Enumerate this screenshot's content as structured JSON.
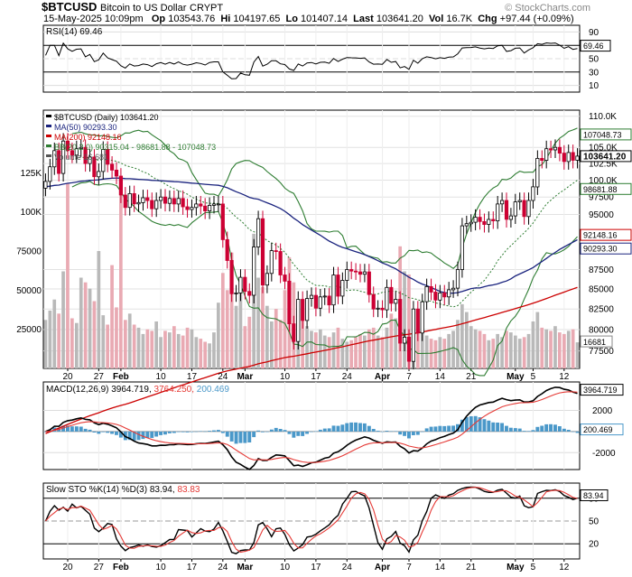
{
  "header": {
    "symbol": "$BTCUSD",
    "name": "Bitcoin to US Dollar",
    "exchange": "CRYPT",
    "date": "15-May-2025 10:09pm",
    "op_label": "Op",
    "op": "103543.76",
    "hi_label": "Hi",
    "hi": "104197.65",
    "lo_label": "Lo",
    "lo": "101407.14",
    "last_label": "Last",
    "last": "103641.20",
    "vol_label": "Vol",
    "vol": "16.7K",
    "chg_label": "Chg",
    "chg": "+97.44 (+0.09%)",
    "credit": "© StockCharts.com"
  },
  "colors": {
    "up_candle": "#000000",
    "down_candle": "#cc0033",
    "ma50": "#1a237e",
    "ma200": "#cc0000",
    "bb": "#2e7d32",
    "volume": "#e9aab3",
    "macd": "#000000",
    "signal": "#e53935",
    "histogram": "#4a98c9",
    "stoch_k": "#000000",
    "stoch_d": "#e53935",
    "rsi_line": "#000000",
    "rsi_fill": "#5d8f4a"
  },
  "rsi_panel": {
    "label": "RSI(14) 69.46",
    "ticks": [
      "90",
      "70",
      "50",
      "30",
      "10"
    ],
    "current": "69.46"
  },
  "price_panel": {
    "legend": [
      {
        "text": "$BTCUSD (Daily) 103641.20",
        "color": "#000000"
      },
      {
        "text": "MA(50) 90293.30",
        "color": "#1a237e"
      },
      {
        "text": "MA(200) 92148.16",
        "color": "#cc0000"
      },
      {
        "text": "BB(20,2.0) 90315.04 - 98681.88 - 107048.73",
        "color": "#2e7d32"
      },
      {
        "text": "Volume 16,681",
        "color": "#555555"
      }
    ],
    "ticks": [
      "110.0K",
      "105.0K",
      "102.5K",
      "100.0K",
      "97500",
      "95000",
      "87500",
      "85000",
      "82500",
      "80000",
      "77500"
    ],
    "markers": [
      "107048.73",
      "103641.20",
      "98681.88",
      "92148.16",
      "90293.30"
    ],
    "volume_ticks": [
      "125K",
      "100K",
      "75000",
      "50000",
      "25000"
    ],
    "volume_marker": "16681"
  },
  "macd_panel": {
    "label": "MACD(12,26,9)",
    "macd": "3964.719",
    "signal": "3764.250",
    "hist": "200.469",
    "ticks": [
      "2000",
      "0",
      "-2000"
    ],
    "markers": [
      "3964.719",
      "200.469"
    ]
  },
  "sto_panel": {
    "label": "Slow STO %K(14) %D(3)",
    "k": "83.94",
    "d": "83.83",
    "ticks": [
      "80",
      "50",
      "20"
    ],
    "marker": "83.94"
  },
  "x_axis": {
    "labels": [
      {
        "text": "20",
        "bold": false
      },
      {
        "text": "27",
        "bold": false
      },
      {
        "text": "Feb",
        "bold": true
      },
      {
        "text": "10",
        "bold": false
      },
      {
        "text": "17",
        "bold": false
      },
      {
        "text": "24",
        "bold": false
      },
      {
        "text": "Mar",
        "bold": true
      },
      {
        "text": "10",
        "bold": false
      },
      {
        "text": "17",
        "bold": false
      },
      {
        "text": "24",
        "bold": false
      },
      {
        "text": "Apr",
        "bold": true
      },
      {
        "text": "7",
        "bold": false
      },
      {
        "text": "14",
        "bold": false
      },
      {
        "text": "21",
        "bold": false
      },
      {
        "text": "May",
        "bold": true
      },
      {
        "text": "5",
        "bold": false
      },
      {
        "text": "12",
        "bold": false
      }
    ]
  },
  "chart_data": {
    "type": "line",
    "start_date": "2025-01-15",
    "dates_note": "one candle per calendar day",
    "title": "$BTCUSD (Daily) 103641.20",
    "y_scale": "log",
    "price_range": [
      75500,
      111000
    ],
    "closes": [
      99800,
      102000,
      104500,
      101000,
      106000,
      104500,
      103800,
      104800,
      105000,
      102500,
      103500,
      100500,
      101300,
      104700,
      102400,
      101500,
      100600,
      97800,
      96000,
      98000,
      96500,
      96700,
      97400,
      97000,
      95800,
      97000,
      97500,
      96600,
      97300,
      96500,
      97300,
      96100,
      95700,
      96000,
      96500,
      96200,
      95500,
      96300,
      96500,
      96500,
      91500,
      88700,
      84400,
      84500,
      86500,
      84700,
      84200,
      90500,
      94400,
      85500,
      87000,
      90000,
      89900,
      86800,
      86000,
      80700,
      78600,
      83700,
      81100,
      83800,
      84200,
      82600,
      84000,
      84100,
      83000,
      86800,
      84100,
      86100,
      87500,
      87300,
      87200,
      86900,
      87200,
      84300,
      82500,
      82600,
      82400,
      85200,
      83200,
      83700,
      78400,
      79100,
      76300,
      82500,
      79600,
      83400,
      85300,
      84600,
      83600,
      84500,
      84000,
      84900,
      85100,
      87500,
      93400,
      93700,
      93900,
      94600,
      94000,
      93600,
      94300,
      94100,
      96500,
      97000,
      94300,
      94800,
      96800,
      97000,
      94700,
      97000,
      99000,
      103300,
      103000,
      104800,
      104600,
      105000,
      104100,
      102800,
      104200,
      103000,
      103641
    ],
    "volumes": [
      31000,
      37000,
      44000,
      35000,
      62000,
      118000,
      32000,
      29000,
      58000,
      55000,
      51000,
      43000,
      75000,
      34000,
      28000,
      66000,
      39000,
      113000,
      31000,
      35000,
      28000,
      26000,
      22000,
      25000,
      24000,
      30000,
      20000,
      24000,
      23000,
      27000,
      22000,
      21000,
      26000,
      25000,
      20000,
      19000,
      17000,
      16000,
      23000,
      42000,
      61000,
      50000,
      74000,
      40000,
      49000,
      27000,
      33000,
      86000,
      58000,
      52000,
      40000,
      30000,
      38000,
      31000,
      50000,
      71000,
      55000,
      32000,
      44000,
      27000,
      24000,
      23000,
      25000,
      21000,
      20000,
      23000,
      26000,
      19000,
      17000,
      18000,
      20000,
      22000,
      21000,
      25000,
      26000,
      21000,
      20000,
      26000,
      35000,
      32000,
      78000,
      62000,
      60000,
      37000,
      31000,
      26000,
      21000,
      19000,
      18000,
      20000,
      19000,
      22000,
      24000,
      31000,
      41000,
      36000,
      27000,
      25000,
      24000,
      22000,
      18000,
      19000,
      22000,
      20000,
      24000,
      23000,
      21000,
      19000,
      20000,
      22000,
      30000,
      36000,
      26000,
      25000,
      24000,
      27000,
      23000,
      22000,
      24000,
      25000,
      16681
    ],
    "series": [
      {
        "name": "MA(50)",
        "last": 90293.3
      },
      {
        "name": "MA(200)",
        "last": 92148.16
      },
      {
        "name": "BB(20,2.0)",
        "lower": 90315.04,
        "middle": 98681.88,
        "upper": 107048.73
      }
    ],
    "rsi_range": [
      0,
      100
    ],
    "macd_range": [
      -3600,
      4700
    ],
    "sto_range": [
      0,
      100
    ]
  }
}
